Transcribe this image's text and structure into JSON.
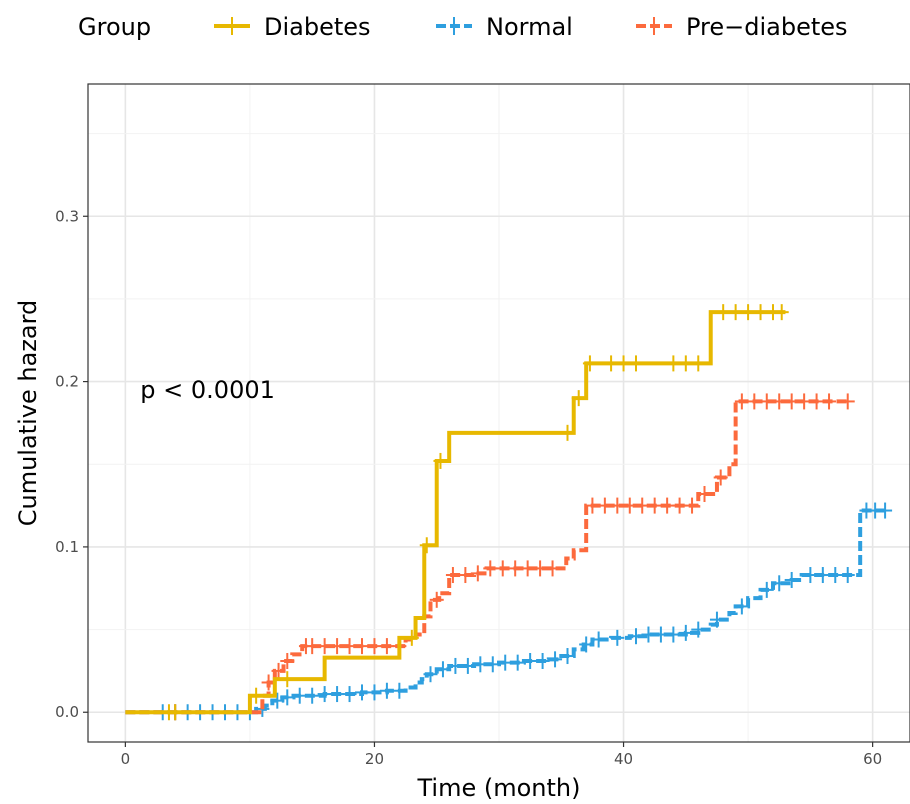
{
  "chart_data": {
    "type": "line",
    "subtype": "step",
    "xlabel": "Time (month)",
    "ylabel": "Cumulative hazard",
    "xlim": [
      -3,
      63
    ],
    "ylim": [
      -0.018,
      0.38
    ],
    "xticks": [
      0,
      20,
      40,
      60
    ],
    "yticks": [
      0.0,
      0.1,
      0.2,
      0.3
    ],
    "xtick_labels": [
      "0",
      "20",
      "40",
      "60"
    ],
    "ytick_labels": [
      "0.0",
      "0.1",
      "0.2",
      "0.3"
    ],
    "grid": true,
    "legend": {
      "title": "Group",
      "placement": "top",
      "entries": [
        "Diabetes",
        "Normal",
        "Pre−diabetes"
      ]
    },
    "annotations": [
      {
        "text": "p < 0.0001",
        "x": 1.2,
        "y": 0.195
      }
    ],
    "series": [
      {
        "name": "Diabetes",
        "color": "#E7B800",
        "dash": "solid",
        "steps": [
          [
            0,
            0
          ],
          [
            10,
            0.01
          ],
          [
            12,
            0.02
          ],
          [
            16,
            0.033
          ],
          [
            22,
            0.045
          ],
          [
            23.3,
            0.057
          ],
          [
            24,
            0.101
          ],
          [
            25,
            0.152
          ],
          [
            26,
            0.169
          ],
          [
            36,
            0.19
          ],
          [
            37,
            0.211
          ],
          [
            47,
            0.242
          ],
          [
            53,
            0.242
          ]
        ],
        "censor": [
          3.5,
          4,
          10.5,
          13,
          23,
          24.2,
          25.3,
          35.5,
          36.4,
          37.3,
          39,
          40,
          41,
          44,
          45,
          46,
          48,
          49,
          50,
          51,
          52,
          52.7
        ]
      },
      {
        "name": "Normal",
        "color": "#2E9FDF",
        "dash": "dashed",
        "steps": [
          [
            0,
            0
          ],
          [
            10.5,
            0.002
          ],
          [
            11.2,
            0.004
          ],
          [
            11.8,
            0.007
          ],
          [
            12.6,
            0.009
          ],
          [
            13.5,
            0.01
          ],
          [
            16,
            0.011
          ],
          [
            19,
            0.012
          ],
          [
            21,
            0.013
          ],
          [
            22.5,
            0.015
          ],
          [
            23.3,
            0.018
          ],
          [
            23.8,
            0.02
          ],
          [
            24.2,
            0.023
          ],
          [
            25,
            0.026
          ],
          [
            26,
            0.028
          ],
          [
            28,
            0.029
          ],
          [
            30,
            0.03
          ],
          [
            32,
            0.031
          ],
          [
            34,
            0.032
          ],
          [
            35,
            0.034
          ],
          [
            36,
            0.038
          ],
          [
            36.8,
            0.041
          ],
          [
            37.5,
            0.044
          ],
          [
            39,
            0.045
          ],
          [
            40.5,
            0.046
          ],
          [
            42,
            0.047
          ],
          [
            45,
            0.048
          ],
          [
            46,
            0.05
          ],
          [
            47,
            0.053
          ],
          [
            47.5,
            0.056
          ],
          [
            48.5,
            0.06
          ],
          [
            49,
            0.064
          ],
          [
            50,
            0.069
          ],
          [
            51,
            0.074
          ],
          [
            52,
            0.078
          ],
          [
            53.5,
            0.08
          ],
          [
            54.3,
            0.083
          ],
          [
            59,
            0.122
          ],
          [
            61,
            0.122
          ]
        ],
        "censor": [
          3,
          4,
          5,
          6,
          7,
          8,
          9,
          10,
          11,
          12.2,
          13,
          14,
          15,
          16,
          17,
          18,
          19,
          20,
          21,
          22,
          24.5,
          25.5,
          26.5,
          27.5,
          28.5,
          29.5,
          30.5,
          31.5,
          32.5,
          33.5,
          34.5,
          35.5,
          37,
          38,
          39.5,
          41,
          42,
          43,
          44,
          45,
          46,
          47.5,
          49.5,
          51.5,
          52.5,
          53.5,
          55,
          56,
          57,
          58,
          59.5,
          60.2,
          61
        ]
      },
      {
        "name": "Pre−diabetes",
        "color": "#FC6A3D",
        "dash": "dashed",
        "steps": [
          [
            0,
            0
          ],
          [
            11,
            0.01
          ],
          [
            11.5,
            0.018
          ],
          [
            12,
            0.025
          ],
          [
            12.7,
            0.031
          ],
          [
            13.4,
            0.035
          ],
          [
            14.2,
            0.04
          ],
          [
            22.5,
            0.044
          ],
          [
            23.3,
            0.047
          ],
          [
            24,
            0.058
          ],
          [
            24.5,
            0.068
          ],
          [
            25.2,
            0.072
          ],
          [
            26,
            0.083
          ],
          [
            28,
            0.084
          ],
          [
            29,
            0.087
          ],
          [
            35.4,
            0.093
          ],
          [
            36,
            0.098
          ],
          [
            37,
            0.125
          ],
          [
            46,
            0.132
          ],
          [
            47.5,
            0.142
          ],
          [
            48.5,
            0.15
          ],
          [
            49,
            0.188
          ],
          [
            58,
            0.188
          ]
        ],
        "censor": [
          4,
          11.5,
          12.3,
          13,
          14.5,
          15,
          16,
          17,
          18,
          19,
          20,
          21,
          22,
          25,
          26.3,
          27.3,
          28.3,
          29.3,
          30.3,
          31.3,
          32.3,
          33.3,
          34.3,
          37.5,
          38.5,
          39.5,
          40.5,
          41.5,
          42.5,
          43.5,
          44.5,
          45.5,
          46.5,
          47.8,
          49.5,
          50.5,
          51.5,
          52.5,
          53.5,
          54.5,
          55.5,
          56.5,
          58
        ]
      }
    ]
  }
}
